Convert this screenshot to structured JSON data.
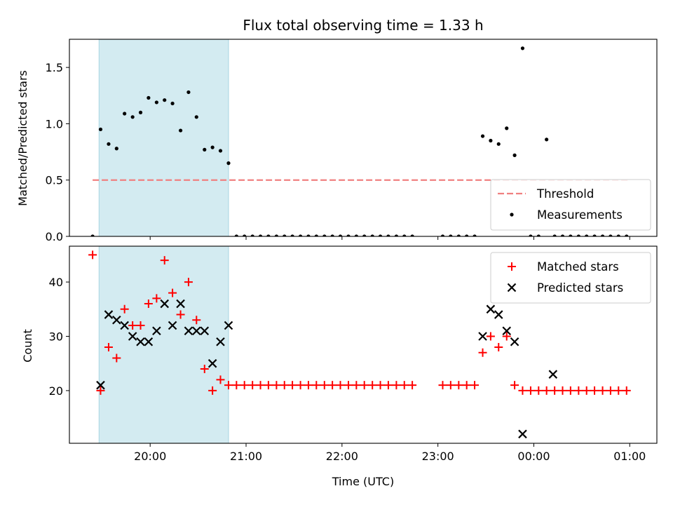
{
  "chart_data": {
    "title": "Flux total observing time = 1.33 h",
    "xlabel": "Time (UTC)",
    "x_tick_labels": [
      "20:00",
      "21:00",
      "22:00",
      "23:00",
      "00:00",
      "01:00"
    ],
    "x_ticks_hours": [
      20,
      21,
      22,
      23,
      24,
      25
    ],
    "xlim_hours": [
      19.158,
      25.283
    ],
    "shaded_interval_hours": [
      19.467,
      20.817
    ],
    "shade_color": "#d3ebf1",
    "panels": [
      {
        "type": "scatter",
        "ylabel": "Matched/Predicted stars",
        "ylim": [
          0,
          1.75
        ],
        "y_ticks": [
          0.0,
          0.5,
          1.0,
          1.5
        ],
        "y_tick_labels": [
          "0.0",
          "0.5",
          "1.0",
          "1.5"
        ],
        "legend_position": "bottom-right",
        "threshold": {
          "name": "Threshold",
          "value": 0.5,
          "x_range_hours": [
            19.4,
            25.0
          ],
          "color": "#f08080",
          "style": "dashed"
        },
        "series": [
          {
            "name": "Measurements",
            "marker": "dot",
            "color": "#000000",
            "x": [
              19.4,
              19.483,
              19.567,
              19.65,
              19.733,
              19.817,
              19.9,
              19.983,
              20.067,
              20.15,
              20.233,
              20.317,
              20.4,
              20.483,
              20.567,
              20.65,
              20.733,
              20.817,
              20.9,
              20.983,
              21.067,
              21.15,
              21.233,
              21.317,
              21.4,
              21.483,
              21.567,
              21.65,
              21.733,
              21.817,
              21.9,
              21.983,
              22.067,
              22.15,
              22.233,
              22.317,
              22.4,
              22.483,
              22.567,
              22.65,
              22.733,
              23.05,
              23.133,
              23.217,
              23.3,
              23.383,
              23.467,
              23.55,
              23.633,
              23.717,
              23.8,
              23.883,
              23.967,
              24.05,
              24.133,
              24.217,
              24.3,
              24.383,
              24.467,
              24.55,
              24.633,
              24.717,
              24.8,
              24.883,
              24.967
            ],
            "y": [
              0.0,
              0.95,
              0.82,
              0.78,
              1.09,
              1.06,
              1.1,
              1.23,
              1.19,
              1.21,
              1.18,
              0.94,
              1.28,
              1.06,
              0.77,
              0.79,
              0.76,
              0.65,
              0.0,
              0.0,
              0.0,
              0.0,
              0.0,
              0.0,
              0.0,
              0.0,
              0.0,
              0.0,
              0.0,
              0.0,
              0.0,
              0.0,
              0.0,
              0.0,
              0.0,
              0.0,
              0.0,
              0.0,
              0.0,
              0.0,
              0.0,
              0.0,
              0.0,
              0.0,
              0.0,
              0.0,
              0.89,
              0.85,
              0.82,
              0.96,
              0.72,
              1.67,
              0.0,
              0.0,
              0.86,
              0.0,
              0.0,
              0.0,
              0.0,
              0.0,
              0.0,
              0.0,
              0.0,
              0.0,
              0.0
            ]
          }
        ]
      },
      {
        "type": "scatter",
        "ylabel": "Count",
        "ylim": [
          10.3,
          46.6
        ],
        "y_ticks": [
          20,
          30,
          40
        ],
        "y_tick_labels": [
          "20",
          "30",
          "40"
        ],
        "legend_position": "top-right",
        "series": [
          {
            "name": "Matched stars",
            "marker": "plus",
            "color": "#ff0000",
            "x": [
              19.4,
              19.483,
              19.567,
              19.65,
              19.733,
              19.817,
              19.9,
              19.983,
              20.067,
              20.15,
              20.233,
              20.317,
              20.4,
              20.483,
              20.567,
              20.65,
              20.733,
              20.817,
              20.9,
              20.983,
              21.067,
              21.15,
              21.233,
              21.317,
              21.4,
              21.483,
              21.567,
              21.65,
              21.733,
              21.817,
              21.9,
              21.983,
              22.067,
              22.15,
              22.233,
              22.317,
              22.4,
              22.483,
              22.567,
              22.65,
              22.733,
              23.05,
              23.133,
              23.217,
              23.3,
              23.383,
              23.467,
              23.55,
              23.633,
              23.717,
              23.8,
              23.883,
              23.967,
              24.05,
              24.133,
              24.217,
              24.3,
              24.383,
              24.467,
              24.55,
              24.633,
              24.717,
              24.8,
              24.883,
              24.967
            ],
            "y": [
              45,
              20,
              28,
              26,
              35,
              32,
              32,
              36,
              37,
              44,
              38,
              34,
              40,
              33,
              24,
              20,
              22,
              21,
              21,
              21,
              21,
              21,
              21,
              21,
              21,
              21,
              21,
              21,
              21,
              21,
              21,
              21,
              21,
              21,
              21,
              21,
              21,
              21,
              21,
              21,
              21,
              21,
              21,
              21,
              21,
              21,
              27,
              30,
              28,
              30,
              21,
              20,
              20,
              20,
              20,
              20,
              20,
              20,
              20,
              20,
              20,
              20,
              20,
              20,
              20
            ]
          },
          {
            "name": "Predicted stars",
            "marker": "x",
            "color": "#000000",
            "x": [
              19.483,
              19.567,
              19.65,
              19.733,
              19.817,
              19.9,
              19.983,
              20.067,
              20.15,
              20.233,
              20.317,
              20.4,
              20.483,
              20.567,
              20.65,
              20.733,
              20.817,
              23.467,
              23.55,
              23.633,
              23.717,
              23.8,
              23.883,
              24.2
            ],
            "y": [
              21,
              34,
              33,
              32,
              30,
              29,
              29,
              31,
              36,
              32,
              36,
              31,
              31,
              31,
              25,
              29,
              32,
              30,
              35,
              34,
              31,
              29,
              12,
              23
            ]
          }
        ]
      }
    ]
  }
}
